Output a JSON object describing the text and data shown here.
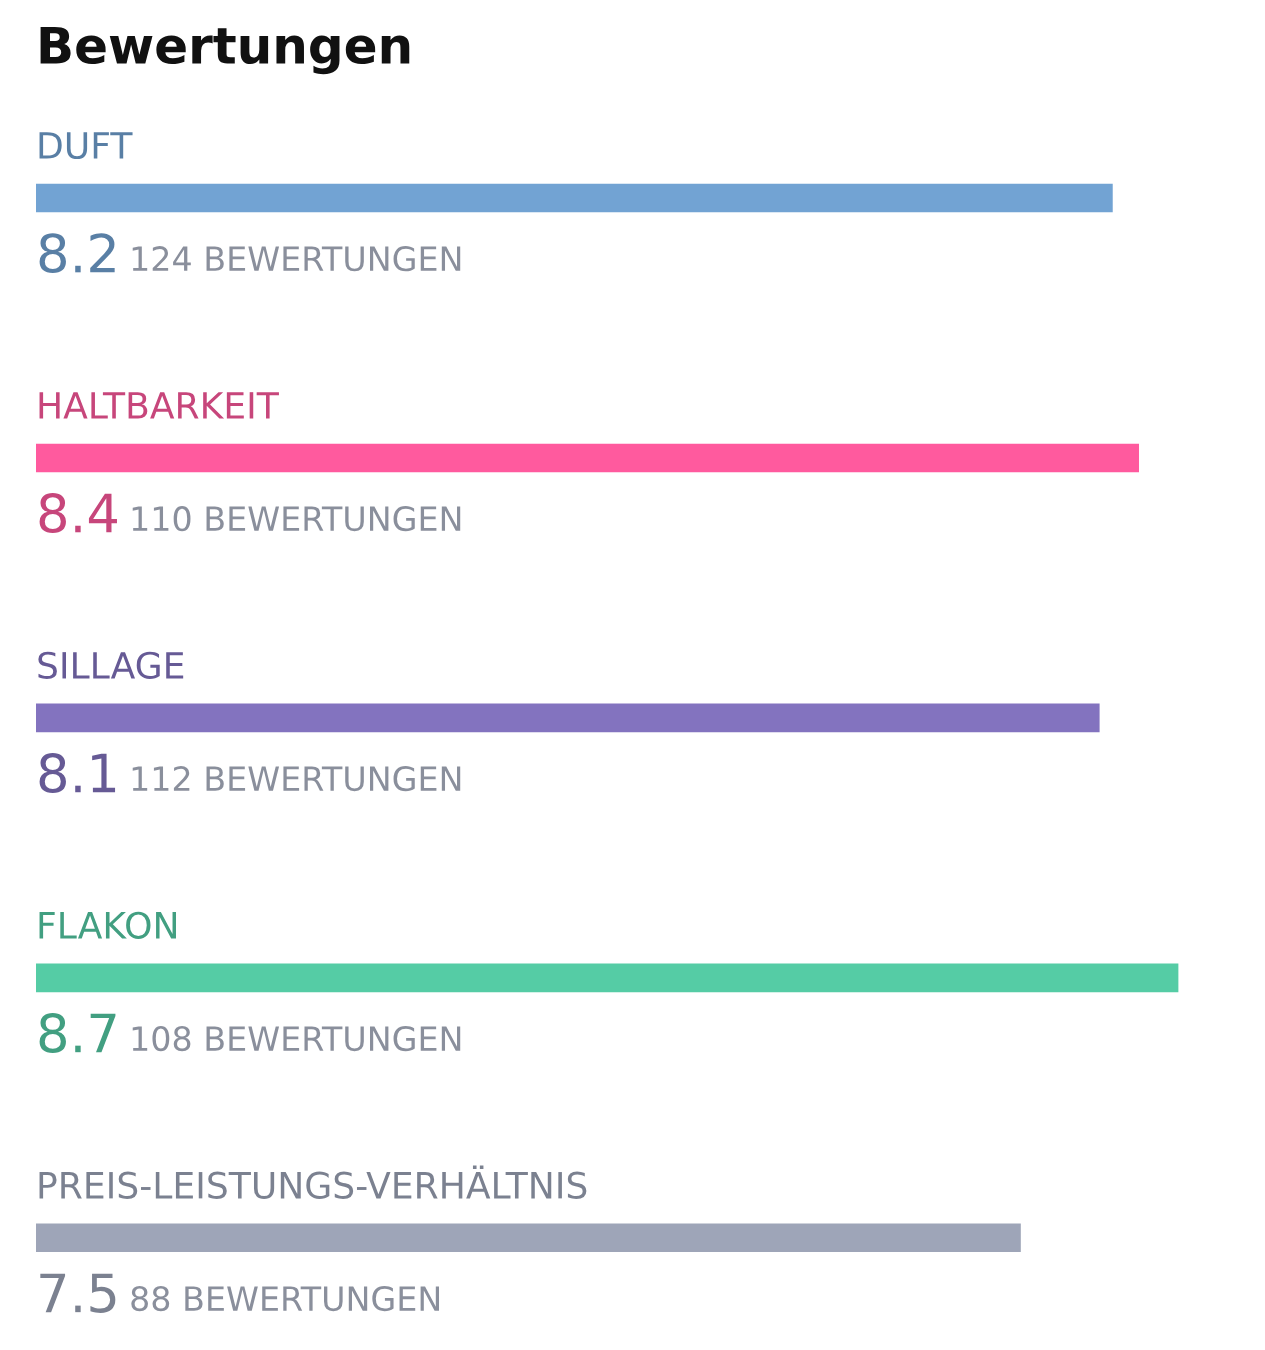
{
  "chart_data": {
    "type": "bar",
    "orientation": "horizontal",
    "title": "Bewertungen",
    "categories": [
      "DUFT",
      "HALTBARKEIT",
      "SILLAGE",
      "FLAKON",
      "PREIS-LEISTUNGS-VERHÄLTNIS"
    ],
    "values": [
      8.2,
      8.4,
      8.1,
      8.7,
      7.5
    ],
    "colors": [
      "#72a3d3",
      "#ff5a9e",
      "#8373bf",
      "#55cca5",
      "#9ea5b8"
    ],
    "tick_labels": false,
    "data_labels": true,
    "annotations": [
      "124 BEWERTUNGEN",
      "110 BEWERTUNGEN",
      "112 BEWERTUNGEN",
      "108 BEWERTUNGEN",
      "88 BEWERTUNGEN"
    ]
  }
}
